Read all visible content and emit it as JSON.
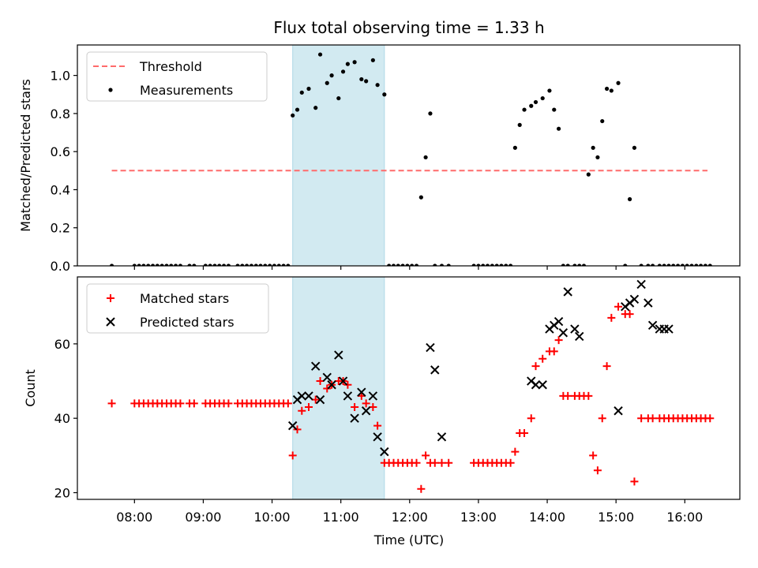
{
  "chart_data": [
    {
      "type": "scatter",
      "panel": "top",
      "title": "Flux total observing time = 1.33 h",
      "xlabel": "",
      "ylabel": "Matched/Predicted stars",
      "xlim": [
        7.17,
        16.8
      ],
      "ylim": [
        0.0,
        1.16
      ],
      "yticks": [
        0.0,
        0.2,
        0.4,
        0.6,
        0.8,
        1.0
      ],
      "ytick_labels": [
        "0.0",
        "0.2",
        "0.4",
        "0.6",
        "0.8",
        "1.0"
      ],
      "highlight_span": [
        10.3,
        11.633
      ],
      "highlight_color": "#add8e6",
      "threshold": {
        "label": "Threshold",
        "y": 0.5,
        "x": [
          7.67,
          16.33
        ],
        "color": "#ff6b6b"
      },
      "legend": [
        "Threshold",
        "Measurements"
      ],
      "series": [
        {
          "name": "Measurements",
          "x": [
            7.67,
            8.0,
            8.067,
            8.133,
            8.2,
            8.267,
            8.333,
            8.4,
            8.467,
            8.533,
            8.6,
            8.667,
            8.8,
            8.867,
            9.033,
            9.1,
            9.167,
            9.233,
            9.3,
            9.367,
            9.5,
            9.567,
            9.633,
            9.7,
            9.767,
            9.833,
            9.9,
            9.967,
            10.033,
            10.1,
            10.167,
            10.233,
            10.3,
            10.367,
            10.433,
            10.533,
            10.633,
            10.7,
            10.8,
            10.867,
            10.967,
            11.033,
            11.1,
            11.2,
            11.3,
            11.367,
            11.467,
            11.533,
            11.633,
            11.7,
            11.767,
            11.833,
            11.9,
            11.967,
            12.033,
            12.1,
            12.167,
            12.233,
            12.3,
            12.367,
            12.467,
            12.567,
            12.933,
            13.0,
            13.067,
            13.133,
            13.2,
            13.267,
            13.333,
            13.4,
            13.467,
            13.533,
            13.6,
            13.667,
            13.767,
            13.833,
            13.933,
            14.033,
            14.1,
            14.167,
            14.233,
            14.3,
            14.4,
            14.467,
            14.533,
            14.6,
            14.667,
            14.733,
            14.8,
            14.867,
            14.933,
            15.033,
            15.133,
            15.2,
            15.267,
            15.367,
            15.467,
            15.533,
            15.633,
            15.7,
            15.767,
            15.833,
            15.9,
            15.967,
            16.033,
            16.1,
            16.167,
            16.233,
            16.3,
            16.367
          ],
          "y": [
            0.0,
            0.0,
            0.0,
            0.0,
            0.0,
            0.0,
            0.0,
            0.0,
            0.0,
            0.0,
            0.0,
            0.0,
            0.0,
            0.0,
            0.0,
            0.0,
            0.0,
            0.0,
            0.0,
            0.0,
            0.0,
            0.0,
            0.0,
            0.0,
            0.0,
            0.0,
            0.0,
            0.0,
            0.0,
            0.0,
            0.0,
            0.0,
            0.79,
            0.82,
            0.91,
            0.93,
            0.83,
            1.11,
            0.96,
            1.0,
            0.88,
            1.02,
            1.06,
            1.07,
            0.98,
            0.97,
            1.08,
            0.95,
            0.9,
            0.0,
            0.0,
            0.0,
            0.0,
            0.0,
            0.0,
            0.0,
            0.36,
            0.57,
            0.8,
            0.0,
            0.0,
            0.0,
            0.0,
            0.0,
            0.0,
            0.0,
            0.0,
            0.0,
            0.0,
            0.0,
            0.0,
            0.62,
            0.74,
            0.82,
            0.84,
            0.86,
            0.88,
            0.92,
            0.82,
            0.72,
            0.0,
            0.0,
            0.0,
            0.0,
            0.0,
            0.48,
            0.62,
            0.57,
            0.76,
            0.93,
            0.92,
            0.96,
            0.0,
            0.35,
            0.62,
            0.0,
            0.0,
            0.0,
            0.0,
            0.0,
            0.0,
            0.0,
            0.0,
            0.0,
            0.0,
            0.0,
            0.0,
            0.0,
            0.0,
            0.0
          ],
          "color": "#000000"
        }
      ]
    },
    {
      "type": "scatter",
      "panel": "bottom",
      "title": "",
      "xlabel": "Time (UTC)",
      "ylabel": "Count",
      "xlim": [
        7.17,
        16.8
      ],
      "ylim": [
        18.2,
        78.0
      ],
      "yticks": [
        20,
        40,
        60
      ],
      "ytick_labels": [
        "20",
        "40",
        "60"
      ],
      "xticks": [
        8,
        9,
        10,
        11,
        12,
        13,
        14,
        15,
        16
      ],
      "xtick_labels": [
        "08:00",
        "09:00",
        "10:00",
        "11:00",
        "12:00",
        "13:00",
        "14:00",
        "15:00",
        "16:00"
      ],
      "highlight_span": [
        10.3,
        11.633
      ],
      "highlight_color": "#add8e6",
      "legend": [
        "Matched stars",
        "Predicted stars"
      ],
      "series": [
        {
          "name": "Matched stars",
          "marker": "plus",
          "color": "#ff0000",
          "x": [
            7.67,
            8.0,
            8.067,
            8.133,
            8.2,
            8.267,
            8.333,
            8.4,
            8.467,
            8.533,
            8.6,
            8.667,
            8.8,
            8.867,
            9.033,
            9.1,
            9.167,
            9.233,
            9.3,
            9.367,
            9.5,
            9.567,
            9.633,
            9.7,
            9.767,
            9.833,
            9.9,
            9.967,
            10.033,
            10.1,
            10.167,
            10.233,
            10.3,
            10.367,
            10.433,
            10.533,
            10.633,
            10.7,
            10.8,
            10.867,
            10.967,
            11.033,
            11.1,
            11.2,
            11.3,
            11.367,
            11.467,
            11.533,
            11.633,
            11.7,
            11.767,
            11.833,
            11.9,
            11.967,
            12.033,
            12.1,
            12.167,
            12.233,
            12.3,
            12.367,
            12.467,
            12.567,
            12.933,
            13.0,
            13.067,
            13.133,
            13.2,
            13.267,
            13.333,
            13.4,
            13.467,
            13.533,
            13.6,
            13.667,
            13.767,
            13.833,
            13.933,
            14.033,
            14.1,
            14.167,
            14.233,
            14.3,
            14.4,
            14.467,
            14.533,
            14.6,
            14.667,
            14.733,
            14.8,
            14.867,
            14.933,
            15.033,
            15.133,
            15.2,
            15.267,
            15.367,
            15.467,
            15.533,
            15.633,
            15.7,
            15.767,
            15.833,
            15.9,
            15.967,
            16.033,
            16.1,
            16.167,
            16.233,
            16.3,
            16.367
          ],
          "y": [
            44,
            44,
            44,
            44,
            44,
            44,
            44,
            44,
            44,
            44,
            44,
            44,
            44,
            44,
            44,
            44,
            44,
            44,
            44,
            44,
            44,
            44,
            44,
            44,
            44,
            44,
            44,
            44,
            44,
            44,
            44,
            44,
            30,
            37,
            42,
            43,
            45,
            50,
            48,
            49,
            50,
            50,
            49,
            43,
            46,
            44,
            43,
            38,
            28,
            28,
            28,
            28,
            28,
            28,
            28,
            28,
            21,
            30,
            28,
            28,
            28,
            28,
            28,
            28,
            28,
            28,
            28,
            28,
            28,
            28,
            28,
            31,
            36,
            36,
            40,
            54,
            56,
            58,
            58,
            61,
            46,
            46,
            46,
            46,
            46,
            46,
            30,
            26,
            40,
            54,
            67,
            70,
            68,
            68,
            23,
            40,
            40,
            40,
            40,
            40,
            40,
            40,
            40,
            40,
            40,
            40,
            40,
            40,
            40,
            40
          ]
        },
        {
          "name": "Predicted stars",
          "marker": "x",
          "color": "#000000",
          "x": [
            10.3,
            10.367,
            10.433,
            10.533,
            10.633,
            10.7,
            10.8,
            10.867,
            10.967,
            11.033,
            11.1,
            11.2,
            11.3,
            11.367,
            11.467,
            11.533,
            11.633,
            12.3,
            12.367,
            12.467,
            13.767,
            13.833,
            13.933,
            14.033,
            14.1,
            14.167,
            14.233,
            14.3,
            14.4,
            14.467,
            15.033,
            15.133,
            15.2,
            15.267,
            15.367,
            15.467,
            15.533,
            15.633,
            15.7,
            15.767
          ],
          "y": [
            38,
            45,
            46,
            46,
            54,
            45,
            51,
            49,
            57,
            50,
            46,
            40,
            47,
            42,
            46,
            35,
            31,
            59,
            53,
            35,
            50,
            49,
            49,
            64,
            65,
            66,
            63,
            74,
            64,
            62,
            42,
            70,
            71,
            72,
            76,
            71,
            65,
            64,
            64,
            64
          ]
        }
      ]
    }
  ]
}
